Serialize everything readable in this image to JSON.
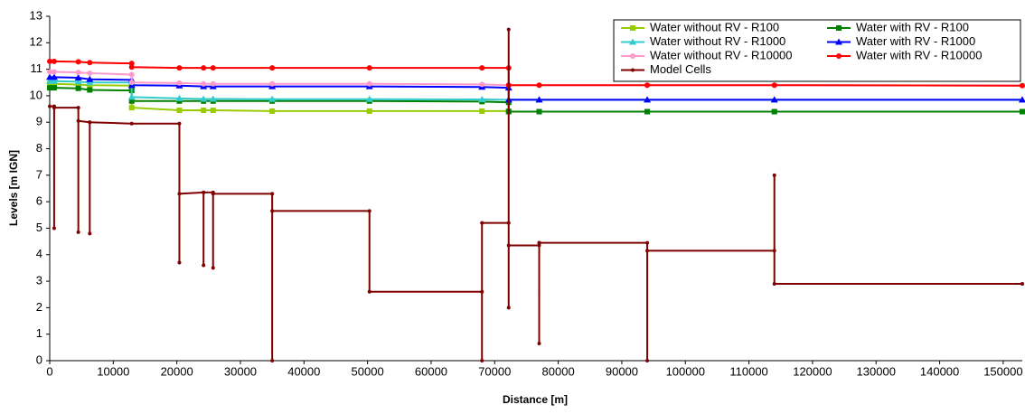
{
  "chart_data": {
    "type": "line",
    "x_label": "Distance [m]",
    "y_label": "Levels [m IGN]",
    "xlim": [
      0,
      153000
    ],
    "ylim": [
      0,
      13
    ],
    "xticks": [
      0,
      10000,
      20000,
      30000,
      40000,
      50000,
      60000,
      70000,
      80000,
      90000,
      100000,
      110000,
      120000,
      130000,
      140000,
      150000
    ],
    "yticks": [
      0,
      1,
      2,
      3,
      4,
      5,
      6,
      7,
      8,
      9,
      10,
      11,
      12,
      13
    ],
    "grid": false,
    "legend": "upper right",
    "x": [
      0,
      700,
      4500,
      6300,
      12900,
      12900,
      20400,
      24200,
      25700,
      35000,
      50300,
      68000,
      72200,
      72200,
      77000,
      94000,
      114000,
      153000
    ],
    "series": [
      {
        "name": "Water without RV - R100",
        "color": "#99cc00",
        "marker": "square",
        "values": [
          10.45,
          10.45,
          10.42,
          10.4,
          10.38,
          9.55,
          9.45,
          9.45,
          9.45,
          9.42,
          9.42,
          9.42,
          9.42,
          9.4,
          9.4,
          9.4,
          9.4,
          9.4
        ]
      },
      {
        "name": "Water with RV - R100",
        "color": "#008000",
        "marker": "square",
        "values": [
          10.3,
          10.3,
          10.28,
          10.22,
          10.2,
          9.8,
          9.8,
          9.8,
          9.8,
          9.8,
          9.8,
          9.78,
          9.75,
          9.4,
          9.4,
          9.4,
          9.4,
          9.4
        ]
      },
      {
        "name": "Water without RV - R1000",
        "color": "#33cccc",
        "marker": "triangle",
        "values": [
          10.55,
          10.55,
          10.53,
          10.5,
          10.5,
          9.95,
          9.9,
          9.88,
          9.88,
          9.87,
          9.87,
          9.86,
          9.85,
          9.85,
          9.85,
          9.85,
          9.85,
          9.85
        ]
      },
      {
        "name": "Water with RV - R1000",
        "color": "#0000ff",
        "marker": "triangle",
        "values": [
          10.7,
          10.7,
          10.68,
          10.62,
          10.6,
          10.4,
          10.38,
          10.35,
          10.35,
          10.35,
          10.35,
          10.33,
          10.3,
          9.85,
          9.85,
          9.85,
          9.85,
          9.85
        ]
      },
      {
        "name": "Water without RV - R10000",
        "color": "#ff99cc",
        "marker": "circle",
        "values": [
          10.9,
          10.9,
          10.88,
          10.85,
          10.8,
          10.5,
          10.48,
          10.45,
          10.45,
          10.45,
          10.45,
          10.43,
          10.4,
          10.4,
          10.4,
          10.4,
          10.4,
          10.38
        ]
      },
      {
        "name": "Water with RV - R10000",
        "color": "#ff0000",
        "marker": "circle",
        "values": [
          11.3,
          11.3,
          11.28,
          11.25,
          11.22,
          11.08,
          11.05,
          11.05,
          11.05,
          11.05,
          11.05,
          11.05,
          11.05,
          10.4,
          10.4,
          10.4,
          10.4,
          10.38
        ]
      },
      {
        "name": "Model Cells",
        "color": "#800000",
        "marker": "dot",
        "x": [
          0,
          700,
          700,
          700,
          4500,
          4500,
          4500,
          6300,
          6300,
          6300,
          12900,
          20400,
          20400,
          20400,
          24200,
          24200,
          24200,
          25700,
          25700,
          25700,
          35000,
          35000,
          35000,
          50300,
          50300,
          68000,
          68000,
          68000,
          72200,
          72200,
          72200,
          72200,
          77000,
          77000,
          77000,
          77000,
          94000,
          94000,
          94000,
          114000,
          114000,
          114000,
          153000
        ],
        "values": [
          9.6,
          9.6,
          5.0,
          9.55,
          9.55,
          4.85,
          9.05,
          9.0,
          4.8,
          9.0,
          8.95,
          8.95,
          3.7,
          6.3,
          6.35,
          3.6,
          6.35,
          6.35,
          3.5,
          6.3,
          6.3,
          0,
          5.65,
          5.65,
          2.6,
          2.6,
          0,
          5.2,
          5.2,
          12.5,
          2.0,
          4.35,
          4.35,
          4.45,
          0.65,
          4.45,
          4.45,
          0,
          4.15,
          4.15,
          7.0,
          2.9,
          2.9
        ]
      }
    ]
  }
}
